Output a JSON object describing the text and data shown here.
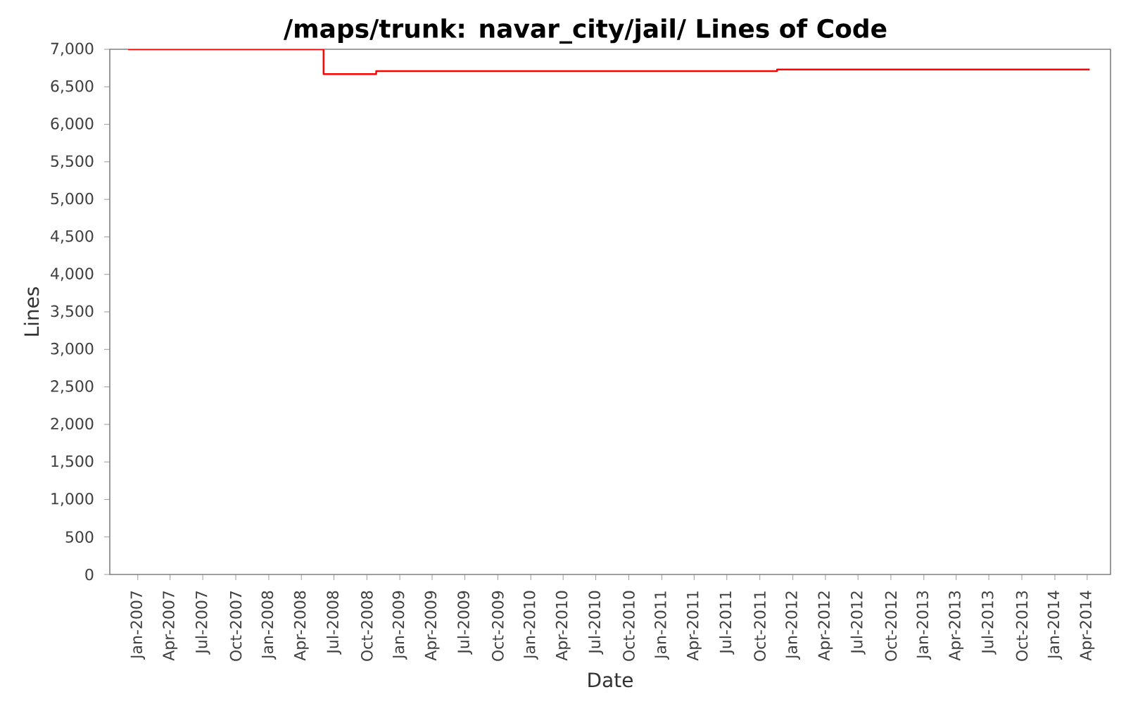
{
  "chart_data": {
    "type": "step",
    "title": "/maps/trunk: navar_city/jail/ Lines of Code",
    "xlabel": "Date",
    "ylabel": "Lines",
    "x": [
      "2006-12-05",
      "2008-06-02",
      "2008-10-27",
      "2011-11-18",
      "2014-04-08"
    ],
    "series": [
      {
        "color": "#ff0000",
        "values": [
          7000,
          6670,
          6710,
          6730,
          6730
        ]
      }
    ],
    "xlim": [
      "2006-10-15",
      "2014-06-05"
    ],
    "xticks": [
      {
        "value": "2007-01-01",
        "label": "Jan-2007"
      },
      {
        "value": "2007-04-01",
        "label": "Apr-2007"
      },
      {
        "value": "2007-07-01",
        "label": "Jul-2007"
      },
      {
        "value": "2007-10-01",
        "label": "Oct-2007"
      },
      {
        "value": "2008-01-01",
        "label": "Jan-2008"
      },
      {
        "value": "2008-04-01",
        "label": "Apr-2008"
      },
      {
        "value": "2008-07-01",
        "label": "Jul-2008"
      },
      {
        "value": "2008-10-01",
        "label": "Oct-2008"
      },
      {
        "value": "2009-01-01",
        "label": "Jan-2009"
      },
      {
        "value": "2009-04-01",
        "label": "Apr-2009"
      },
      {
        "value": "2009-07-01",
        "label": "Jul-2009"
      },
      {
        "value": "2009-10-01",
        "label": "Oct-2009"
      },
      {
        "value": "2010-01-01",
        "label": "Jan-2010"
      },
      {
        "value": "2010-04-01",
        "label": "Apr-2010"
      },
      {
        "value": "2010-07-01",
        "label": "Jul-2010"
      },
      {
        "value": "2010-10-01",
        "label": "Oct-2010"
      },
      {
        "value": "2011-01-01",
        "label": "Jan-2011"
      },
      {
        "value": "2011-04-01",
        "label": "Apr-2011"
      },
      {
        "value": "2011-07-01",
        "label": "Jul-2011"
      },
      {
        "value": "2011-10-01",
        "label": "Oct-2011"
      },
      {
        "value": "2012-01-01",
        "label": "Jan-2012"
      },
      {
        "value": "2012-04-01",
        "label": "Apr-2012"
      },
      {
        "value": "2012-07-01",
        "label": "Jul-2012"
      },
      {
        "value": "2012-10-01",
        "label": "Oct-2012"
      },
      {
        "value": "2013-01-01",
        "label": "Jan-2013"
      },
      {
        "value": "2013-04-01",
        "label": "Apr-2013"
      },
      {
        "value": "2013-07-01",
        "label": "Jul-2013"
      },
      {
        "value": "2013-10-01",
        "label": "Oct-2013"
      },
      {
        "value": "2014-01-01",
        "label": "Jan-2014"
      },
      {
        "value": "2014-04-01",
        "label": "Apr-2014"
      }
    ],
    "ylim": [
      0,
      7000
    ],
    "yticks": [
      0,
      500,
      {
        "value": 1000,
        "label": "1,000"
      },
      {
        "value": 1500,
        "label": "1,500"
      },
      {
        "value": 2000,
        "label": "2,000"
      },
      {
        "value": 2500,
        "label": "2,500"
      },
      {
        "value": 3000,
        "label": "3,000"
      },
      {
        "value": 3500,
        "label": "3,500"
      },
      {
        "value": 4000,
        "label": "4,000"
      },
      {
        "value": 4500,
        "label": "4,500"
      },
      {
        "value": 5000,
        "label": "5,000"
      },
      {
        "value": 5500,
        "label": "5,500"
      },
      {
        "value": 6000,
        "label": "6,000"
      },
      {
        "value": 6500,
        "label": "6,500"
      },
      {
        "value": 7000,
        "label": "7,000"
      }
    ],
    "grid": false,
    "marker": "none",
    "line_style": "solid"
  }
}
